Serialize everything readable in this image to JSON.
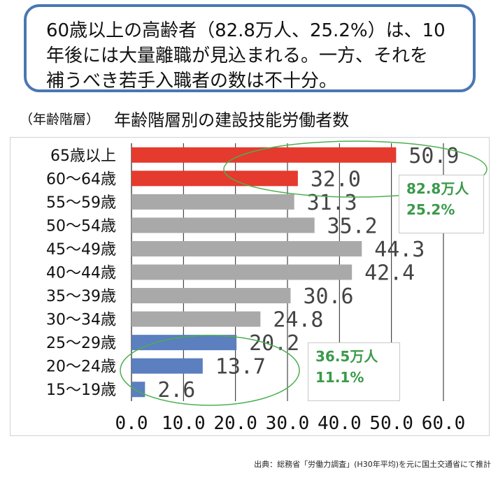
{
  "callout": {
    "lines": [
      "60歳以上の高齢者（82.8万人、25.2%）は、10",
      "年後には大量離職が見込まれる。一方、それを",
      "補うべき若手入職者の数は不十分。"
    ]
  },
  "header": {
    "axis_unit": "（年齢階層）",
    "title": "年齢階層別の建設技能労働者数"
  },
  "notes": {
    "senior": [
      "82.8万人",
      "25.2%"
    ],
    "young": [
      "36.5万人",
      "11.1%"
    ]
  },
  "source": "出典：総務省「労働力調査」(H30年平均)を元に国土交通省にて推計",
  "colors": {
    "red": "#e53a2e",
    "gray": "#a9a9a9",
    "blue": "#5b7fbf",
    "green": "#4caf50",
    "note_text": "#3a9a4a"
  },
  "chart_data": {
    "type": "bar",
    "orientation": "horizontal",
    "categories": [
      "65歳以上",
      "60～64歳",
      "55～59歳",
      "50～54歳",
      "45～49歳",
      "40～44歳",
      "35～39歳",
      "30～34歳",
      "25～29歳",
      "20～24歳",
      "15～19歳"
    ],
    "values": [
      50.9,
      32.0,
      31.3,
      35.2,
      44.3,
      42.4,
      30.6,
      24.8,
      20.2,
      13.7,
      2.6
    ],
    "value_labels": [
      "50.9",
      "32.0",
      "31.3",
      "35.2",
      "44.3",
      "42.4",
      "30.6",
      "24.8",
      "20.2",
      "13.7",
      "2.6"
    ],
    "bar_colors": [
      "red",
      "red",
      "gray",
      "gray",
      "gray",
      "gray",
      "gray",
      "gray",
      "blue",
      "blue",
      "blue"
    ],
    "xlim": [
      0,
      60
    ],
    "xticks": [
      "0.0",
      "10.0",
      "20.0",
      "30.0",
      "40.0",
      "50.0",
      "60.0"
    ],
    "grid": true,
    "title": "年齢階層別の建設技能労働者数",
    "ylabel": "（年齢階層）"
  }
}
